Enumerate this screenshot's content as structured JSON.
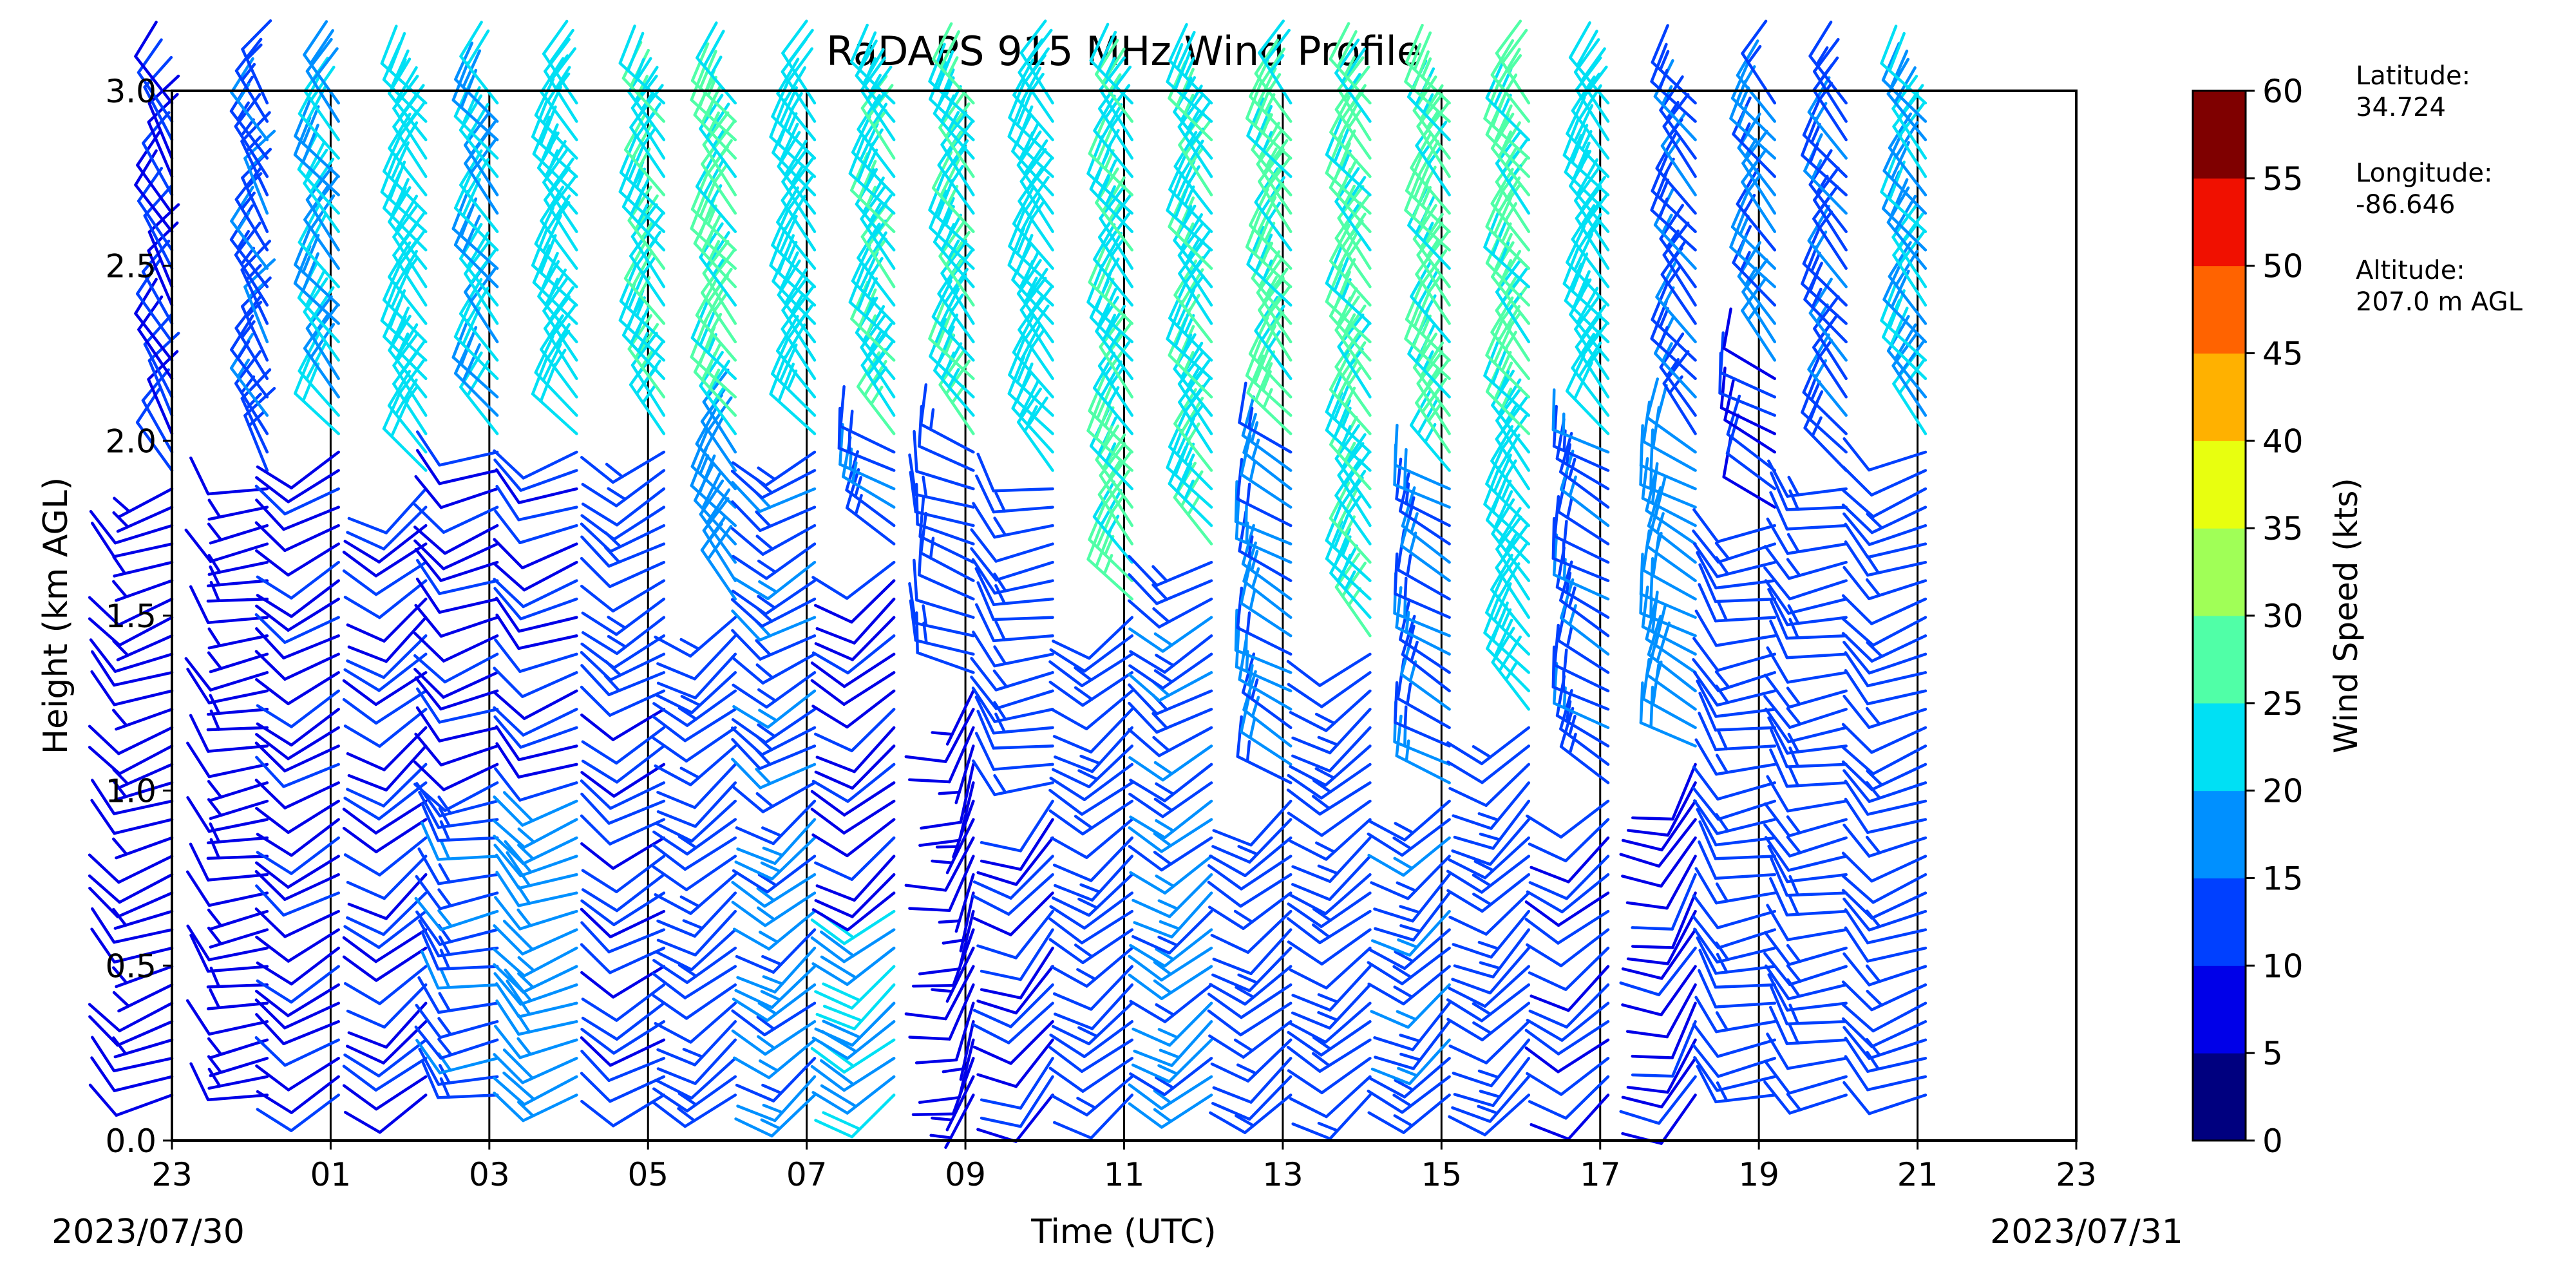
{
  "chart_data": {
    "type": "barbs",
    "title": "RaDAPS 915 MHz Wind Profile",
    "xlabel": "Time (UTC)",
    "ylabel": "Height (km AGL)",
    "x_tick_labels": [
      "23",
      "01",
      "03",
      "05",
      "07",
      "09",
      "11",
      "13",
      "15",
      "17",
      "19",
      "21",
      "23"
    ],
    "x_date_left": "2023/07/30",
    "x_date_right": "2023/07/31",
    "xlim_hours": [
      0,
      24
    ],
    "ylim": [
      0,
      3.0
    ],
    "y_ticks": [
      "0.0",
      "0.5",
      "1.0",
      "1.5",
      "2.0",
      "2.5",
      "3.0"
    ],
    "colorbar": {
      "label": "Wind Speed (kts)",
      "ticks": [
        "0",
        "5",
        "10",
        "15",
        "20",
        "25",
        "30",
        "35",
        "40",
        "45",
        "50",
        "55",
        "60"
      ],
      "colors": [
        "#00007f",
        "#0000e8",
        "#0040ff",
        "#0090ff",
        "#00e0f4",
        "#50ffa7",
        "#a0ff57",
        "#e8ff0f",
        "#ffb100",
        "#ff6300",
        "#f01000",
        "#7f0000"
      ]
    },
    "station": {
      "latitude_label": "Latitude:",
      "latitude": "34.724",
      "longitude_label": "Longitude:",
      "longitude": "-86.646",
      "altitude_label": "Altitude:",
      "altitude": "207.0 m AGL"
    },
    "profiles": [
      {
        "t": 0.0,
        "segments": [
          [
            0.13,
            1.9,
            8,
            250
          ],
          [
            1.9,
            3.0,
            10,
            330
          ]
        ]
      },
      {
        "t": 1.2,
        "segments": [
          [
            0.13,
            1.9,
            7,
            260
          ],
          [
            1.9,
            3.0,
            14,
            330
          ]
        ]
      },
      {
        "t": 2.1,
        "segments": [
          [
            0.13,
            2.0,
            9,
            240
          ],
          [
            2.0,
            3.0,
            20,
            320
          ]
        ]
      },
      {
        "t": 3.2,
        "segments": [
          [
            0.13,
            1.9,
            10,
            230
          ],
          [
            1.9,
            3.0,
            22,
            320
          ]
        ]
      },
      {
        "t": 4.1,
        "segments": [
          [
            0.13,
            1.0,
            14,
            260
          ],
          [
            1.0,
            2.0,
            9,
            250
          ],
          [
            2.0,
            3.0,
            20,
            320
          ]
        ]
      },
      {
        "t": 5.1,
        "segments": [
          [
            0.13,
            1.0,
            17,
            250
          ],
          [
            1.0,
            2.0,
            10,
            250
          ],
          [
            2.0,
            3.0,
            22,
            320
          ]
        ]
      },
      {
        "t": 6.2,
        "segments": [
          [
            0.13,
            1.3,
            11,
            240
          ],
          [
            1.3,
            2.0,
            13,
            240
          ],
          [
            2.0,
            3.0,
            24,
            320
          ]
        ]
      },
      {
        "t": 7.1,
        "segments": [
          [
            0.13,
            1.5,
            12,
            230
          ],
          [
            1.5,
            2.0,
            18,
            320
          ],
          [
            2.0,
            3.0,
            26,
            320
          ]
        ]
      },
      {
        "t": 8.1,
        "segments": [
          [
            0.13,
            1.0,
            16,
            230
          ],
          [
            1.0,
            2.0,
            14,
            240
          ],
          [
            2.0,
            3.0,
            22,
            320
          ]
        ]
      },
      {
        "t": 9.1,
        "segments": [
          [
            0.13,
            0.7,
            20,
            230
          ],
          [
            0.7,
            1.7,
            9,
            230
          ],
          [
            1.7,
            2.0,
            15,
            300
          ],
          [
            2.0,
            3.0,
            24,
            320
          ]
        ]
      },
      {
        "t": 10.1,
        "segments": [
          [
            0.13,
            1.3,
            8,
            200
          ],
          [
            1.3,
            2.0,
            12,
            290
          ],
          [
            2.0,
            3.0,
            24,
            320
          ]
        ]
      },
      {
        "t": 11.1,
        "segments": [
          [
            0.13,
            1.0,
            10,
            220
          ],
          [
            1.0,
            1.9,
            13,
            260
          ],
          [
            1.9,
            3.0,
            22,
            320
          ]
        ]
      },
      {
        "t": 12.1,
        "segments": [
          [
            0.13,
            1.5,
            12,
            230
          ],
          [
            1.5,
            2.0,
            26,
            320
          ],
          [
            2.0,
            3.0,
            24,
            320
          ]
        ]
      },
      {
        "t": 13.1,
        "segments": [
          [
            0.13,
            1.0,
            16,
            230
          ],
          [
            1.0,
            1.7,
            14,
            240
          ],
          [
            1.7,
            3.0,
            24,
            320
          ]
        ]
      },
      {
        "t": 14.1,
        "segments": [
          [
            0.13,
            1.0,
            12,
            230
          ],
          [
            1.0,
            2.0,
            16,
            300
          ],
          [
            2.0,
            3.0,
            26,
            320
          ]
        ]
      },
      {
        "t": 15.1,
        "segments": [
          [
            0.13,
            1.4,
            13,
            230
          ],
          [
            1.4,
            2.0,
            24,
            320
          ],
          [
            2.0,
            3.0,
            26,
            320
          ]
        ]
      },
      {
        "t": 16.1,
        "segments": [
          [
            0.13,
            1.0,
            14,
            225
          ],
          [
            1.0,
            1.9,
            15,
            300
          ],
          [
            1.9,
            3.0,
            26,
            320
          ]
        ]
      },
      {
        "t": 17.1,
        "segments": [
          [
            0.13,
            1.2,
            13,
            225
          ],
          [
            1.2,
            2.0,
            22,
            320
          ],
          [
            2.0,
            3.0,
            26,
            320
          ]
        ]
      },
      {
        "t": 18.1,
        "segments": [
          [
            0.13,
            1.0,
            11,
            230
          ],
          [
            1.0,
            2.0,
            14,
            300
          ],
          [
            2.0,
            3.0,
            22,
            320
          ]
        ]
      },
      {
        "t": 19.2,
        "segments": [
          [
            0.13,
            1.1,
            9,
            210
          ],
          [
            1.1,
            2.0,
            18,
            300
          ],
          [
            2.0,
            3.0,
            14,
            320
          ]
        ]
      },
      {
        "t": 20.2,
        "segments": [
          [
            0.13,
            1.8,
            12,
            260
          ],
          [
            1.8,
            2.2,
            10,
            300
          ],
          [
            2.2,
            3.0,
            16,
            320
          ]
        ]
      },
      {
        "t": 21.1,
        "segments": [
          [
            0.13,
            1.9,
            13,
            260
          ],
          [
            1.9,
            3.0,
            14,
            320
          ]
        ]
      },
      {
        "t": 22.1,
        "segments": [
          [
            0.13,
            2.0,
            12,
            250
          ],
          [
            2.0,
            3.0,
            20,
            320
          ]
        ]
      }
    ]
  }
}
